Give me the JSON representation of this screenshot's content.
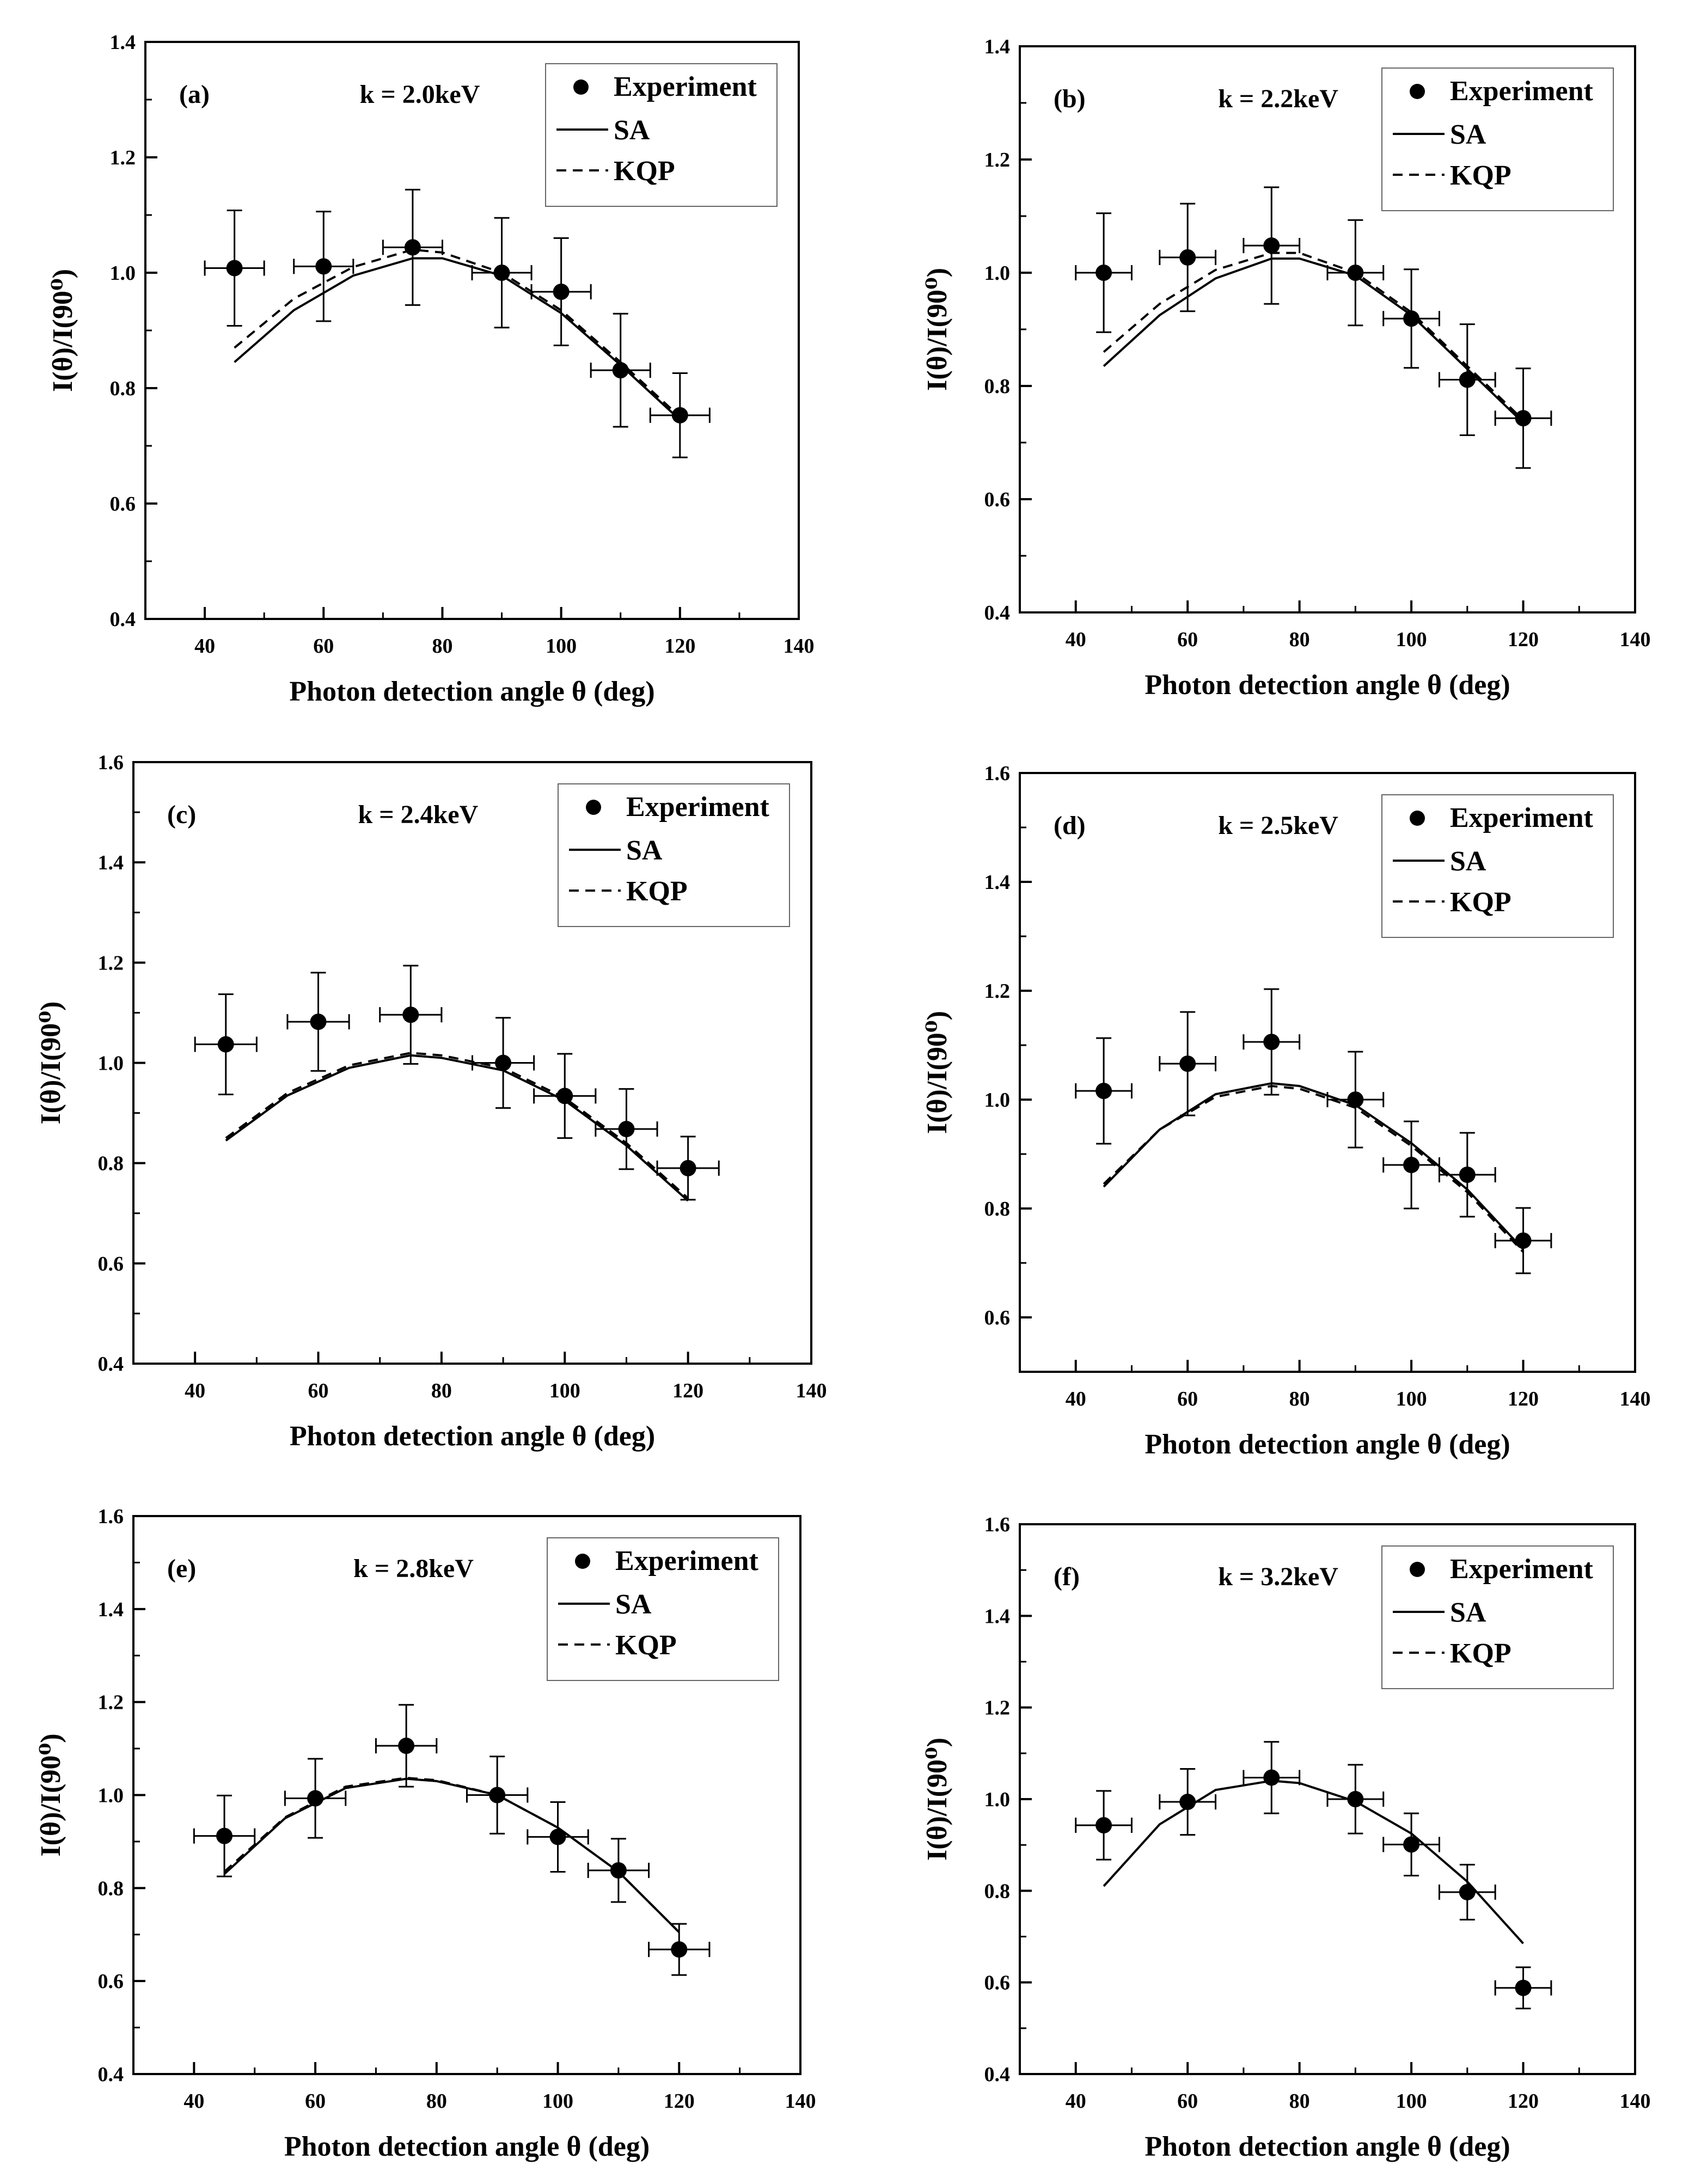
{
  "figure": {
    "colors": {
      "ink": "#000000",
      "background": "#ffffff"
    }
  },
  "chart_data": [
    {
      "panel": "(a)",
      "type": "scatter",
      "energy_label": "k = 2.0keV",
      "xlabel": "Photon detection angle θ (deg)",
      "ylabel": "I(θ)/I(90⁰)",
      "xlim": [
        30,
        140
      ],
      "ylim": [
        0.4,
        1.4
      ],
      "xticks": [
        "40",
        "60",
        "80",
        "100",
        "120",
        "140"
      ],
      "yticks": [
        "0.4",
        "0.6",
        "0.8",
        "1.0",
        "1.2",
        "1.4"
      ],
      "legend": [
        "Experiment",
        "SA",
        "KQP"
      ],
      "legend_position": "top-right",
      "experiment": {
        "x": [
          45,
          60,
          75,
          90,
          100,
          110,
          120
        ],
        "y": [
          1.008,
          1.011,
          1.044,
          1.0,
          0.967,
          0.831,
          0.753
        ],
        "yerr": [
          0.1,
          0.095,
          0.1,
          0.095,
          0.093,
          0.098,
          0.073
        ],
        "xerr": 5
      },
      "SA": {
        "x": [
          45,
          55,
          65,
          75,
          80,
          90,
          100,
          110,
          120
        ],
        "y": [
          0.845,
          0.935,
          0.995,
          1.025,
          1.025,
          0.995,
          0.93,
          0.84,
          0.745
        ]
      },
      "KQP": {
        "x": [
          45,
          55,
          65,
          75,
          80,
          90,
          100,
          110,
          120
        ],
        "y": [
          0.87,
          0.955,
          1.01,
          1.04,
          1.035,
          1.0,
          0.935,
          0.845,
          0.75
        ]
      }
    },
    {
      "panel": "(b)",
      "type": "scatter",
      "energy_label": "k = 2.2keV",
      "xlabel": "Photon detection angle θ (deg)",
      "ylabel": "I(θ)/I(90⁰)",
      "xlim": [
        30,
        140
      ],
      "ylim": [
        0.4,
        1.4
      ],
      "xticks": [
        "40",
        "60",
        "80",
        "100",
        "120",
        "140"
      ],
      "yticks": [
        "0.4",
        "0.6",
        "0.8",
        "1.0",
        "1.2",
        "1.4"
      ],
      "legend": [
        "Experiment",
        "SA",
        "KQP"
      ],
      "legend_position": "top-right",
      "experiment": {
        "x": [
          45,
          60,
          75,
          90,
          100,
          110,
          120
        ],
        "y": [
          1.0,
          1.027,
          1.048,
          1.0,
          0.919,
          0.811,
          0.743
        ],
        "yerr": [
          0.105,
          0.095,
          0.103,
          0.093,
          0.087,
          0.098,
          0.088
        ],
        "xerr": 5
      },
      "SA": {
        "x": [
          45,
          55,
          65,
          75,
          80,
          90,
          100,
          110,
          120
        ],
        "y": [
          0.835,
          0.925,
          0.99,
          1.025,
          1.025,
          0.995,
          0.925,
          0.83,
          0.735
        ]
      },
      "KQP": {
        "x": [
          45,
          55,
          65,
          75,
          80,
          90,
          100,
          110,
          120
        ],
        "y": [
          0.86,
          0.945,
          1.005,
          1.035,
          1.035,
          1.0,
          0.93,
          0.835,
          0.74
        ]
      }
    },
    {
      "panel": "(c)",
      "type": "scatter",
      "energy_label": "k = 2.4keV",
      "xlabel": "Photon detection angle θ (deg)",
      "ylabel": "I(θ)/I(90⁰)",
      "xlim": [
        30,
        140
      ],
      "ylim": [
        0.4,
        1.6
      ],
      "xticks": [
        "40",
        "60",
        "80",
        "100",
        "120",
        "140"
      ],
      "yticks": [
        "0.4",
        "0.6",
        "0.8",
        "1.0",
        "1.2",
        "1.4",
        "1.6"
      ],
      "legend": [
        "Experiment",
        "SA",
        "KQP"
      ],
      "legend_position": "top-right",
      "experiment": {
        "x": [
          45,
          60,
          75,
          90,
          100,
          110,
          120
        ],
        "y": [
          1.037,
          1.082,
          1.096,
          1.0,
          0.934,
          0.868,
          0.79
        ],
        "yerr": [
          0.1,
          0.098,
          0.098,
          0.09,
          0.084,
          0.08,
          0.063
        ],
        "xerr": 5
      },
      "SA": {
        "x": [
          45,
          55,
          65,
          75,
          80,
          90,
          100,
          110,
          120
        ],
        "y": [
          0.845,
          0.935,
          0.99,
          1.015,
          1.01,
          0.985,
          0.925,
          0.835,
          0.725
        ]
      },
      "KQP": {
        "x": [
          45,
          55,
          65,
          75,
          80,
          90,
          100,
          110,
          120
        ],
        "y": [
          0.85,
          0.94,
          0.995,
          1.02,
          1.015,
          0.99,
          0.93,
          0.84,
          0.73
        ]
      }
    },
    {
      "panel": "(d)",
      "type": "scatter",
      "energy_label": "k = 2.5keV",
      "xlabel": "Photon detection angle θ (deg)",
      "ylabel": "I(θ)/I(90⁰)",
      "xlim": [
        30,
        140
      ],
      "ylim": [
        0.5,
        1.6
      ],
      "xticks": [
        "40",
        "60",
        "80",
        "100",
        "120",
        "140"
      ],
      "yticks": [
        "0.6",
        "0.8",
        "1.0",
        "1.2",
        "1.4",
        "1.6"
      ],
      "legend": [
        "Experiment",
        "SA",
        "KQP"
      ],
      "legend_position": "top-right",
      "experiment": {
        "x": [
          45,
          60,
          75,
          90,
          100,
          110,
          120
        ],
        "y": [
          1.016,
          1.066,
          1.106,
          1.0,
          0.88,
          0.862,
          0.741
        ],
        "yerr": [
          0.097,
          0.095,
          0.097,
          0.088,
          0.08,
          0.077,
          0.06
        ],
        "xerr": 5
      },
      "SA": {
        "x": [
          45,
          55,
          65,
          75,
          80,
          90,
          100,
          110,
          120
        ],
        "y": [
          0.84,
          0.945,
          1.01,
          1.03,
          1.025,
          0.99,
          0.92,
          0.835,
          0.725
        ]
      },
      "KQP": {
        "x": [
          45,
          55,
          65,
          75,
          80,
          90,
          100,
          110,
          120
        ],
        "y": [
          0.845,
          0.945,
          1.005,
          1.025,
          1.02,
          0.985,
          0.915,
          0.83,
          0.72
        ]
      }
    },
    {
      "panel": "(e)",
      "type": "scatter",
      "energy_label": "k = 2.8keV",
      "xlabel": "Photon detection angle θ (deg)",
      "ylabel": "I(θ)/I(90⁰)",
      "xlim": [
        30,
        140
      ],
      "ylim": [
        0.4,
        1.6
      ],
      "xticks": [
        "40",
        "60",
        "80",
        "100",
        "120",
        "140"
      ],
      "yticks": [
        "0.4",
        "0.6",
        "0.8",
        "1.0",
        "1.2",
        "1.4",
        "1.6"
      ],
      "legend": [
        "Experiment",
        "SA",
        "KQP"
      ],
      "legend_position": "top-right",
      "experiment": {
        "x": [
          45,
          60,
          75,
          90,
          100,
          110,
          120
        ],
        "y": [
          0.912,
          0.993,
          1.106,
          1.0,
          0.91,
          0.838,
          0.668
        ],
        "yerr": [
          0.087,
          0.085,
          0.088,
          0.083,
          0.075,
          0.068,
          0.055
        ],
        "xerr": 5
      },
      "SA": {
        "x": [
          45,
          55,
          65,
          75,
          80,
          90,
          100,
          110,
          120
        ],
        "y": [
          0.83,
          0.95,
          1.015,
          1.035,
          1.03,
          1.0,
          0.93,
          0.835,
          0.705
        ]
      },
      "KQP": {
        "x": [
          45,
          55,
          65,
          75,
          80,
          90,
          100,
          110,
          120
        ],
        "y": [
          0.835,
          0.952,
          1.018,
          1.037,
          1.032,
          1.0,
          0.93,
          0.835,
          0.705
        ]
      }
    },
    {
      "panel": "(f)",
      "type": "scatter",
      "energy_label": "k = 3.2keV",
      "xlabel": "Photon detection angle θ (deg)",
      "ylabel": "I(θ)/I(90⁰)",
      "xlim": [
        30,
        140
      ],
      "ylim": [
        0.4,
        1.6
      ],
      "xticks": [
        "40",
        "60",
        "80",
        "100",
        "120",
        "140"
      ],
      "yticks": [
        "0.4",
        "0.6",
        "0.8",
        "1.0",
        "1.2",
        "1.4",
        "1.6"
      ],
      "legend": [
        "Experiment",
        "SA",
        "KQP"
      ],
      "legend_position": "top-right",
      "experiment": {
        "x": [
          45,
          60,
          75,
          90,
          100,
          110,
          120
        ],
        "y": [
          0.943,
          0.994,
          1.047,
          1.0,
          0.901,
          0.797,
          0.588
        ],
        "yerr": [
          0.075,
          0.072,
          0.078,
          0.075,
          0.068,
          0.06,
          0.045
        ],
        "xerr": 5
      },
      "SA": {
        "x": [
          45,
          55,
          65,
          75,
          80,
          90,
          100,
          110,
          120
        ],
        "y": [
          0.81,
          0.945,
          1.02,
          1.04,
          1.035,
          0.995,
          0.925,
          0.82,
          0.685
        ]
      }
    }
  ]
}
